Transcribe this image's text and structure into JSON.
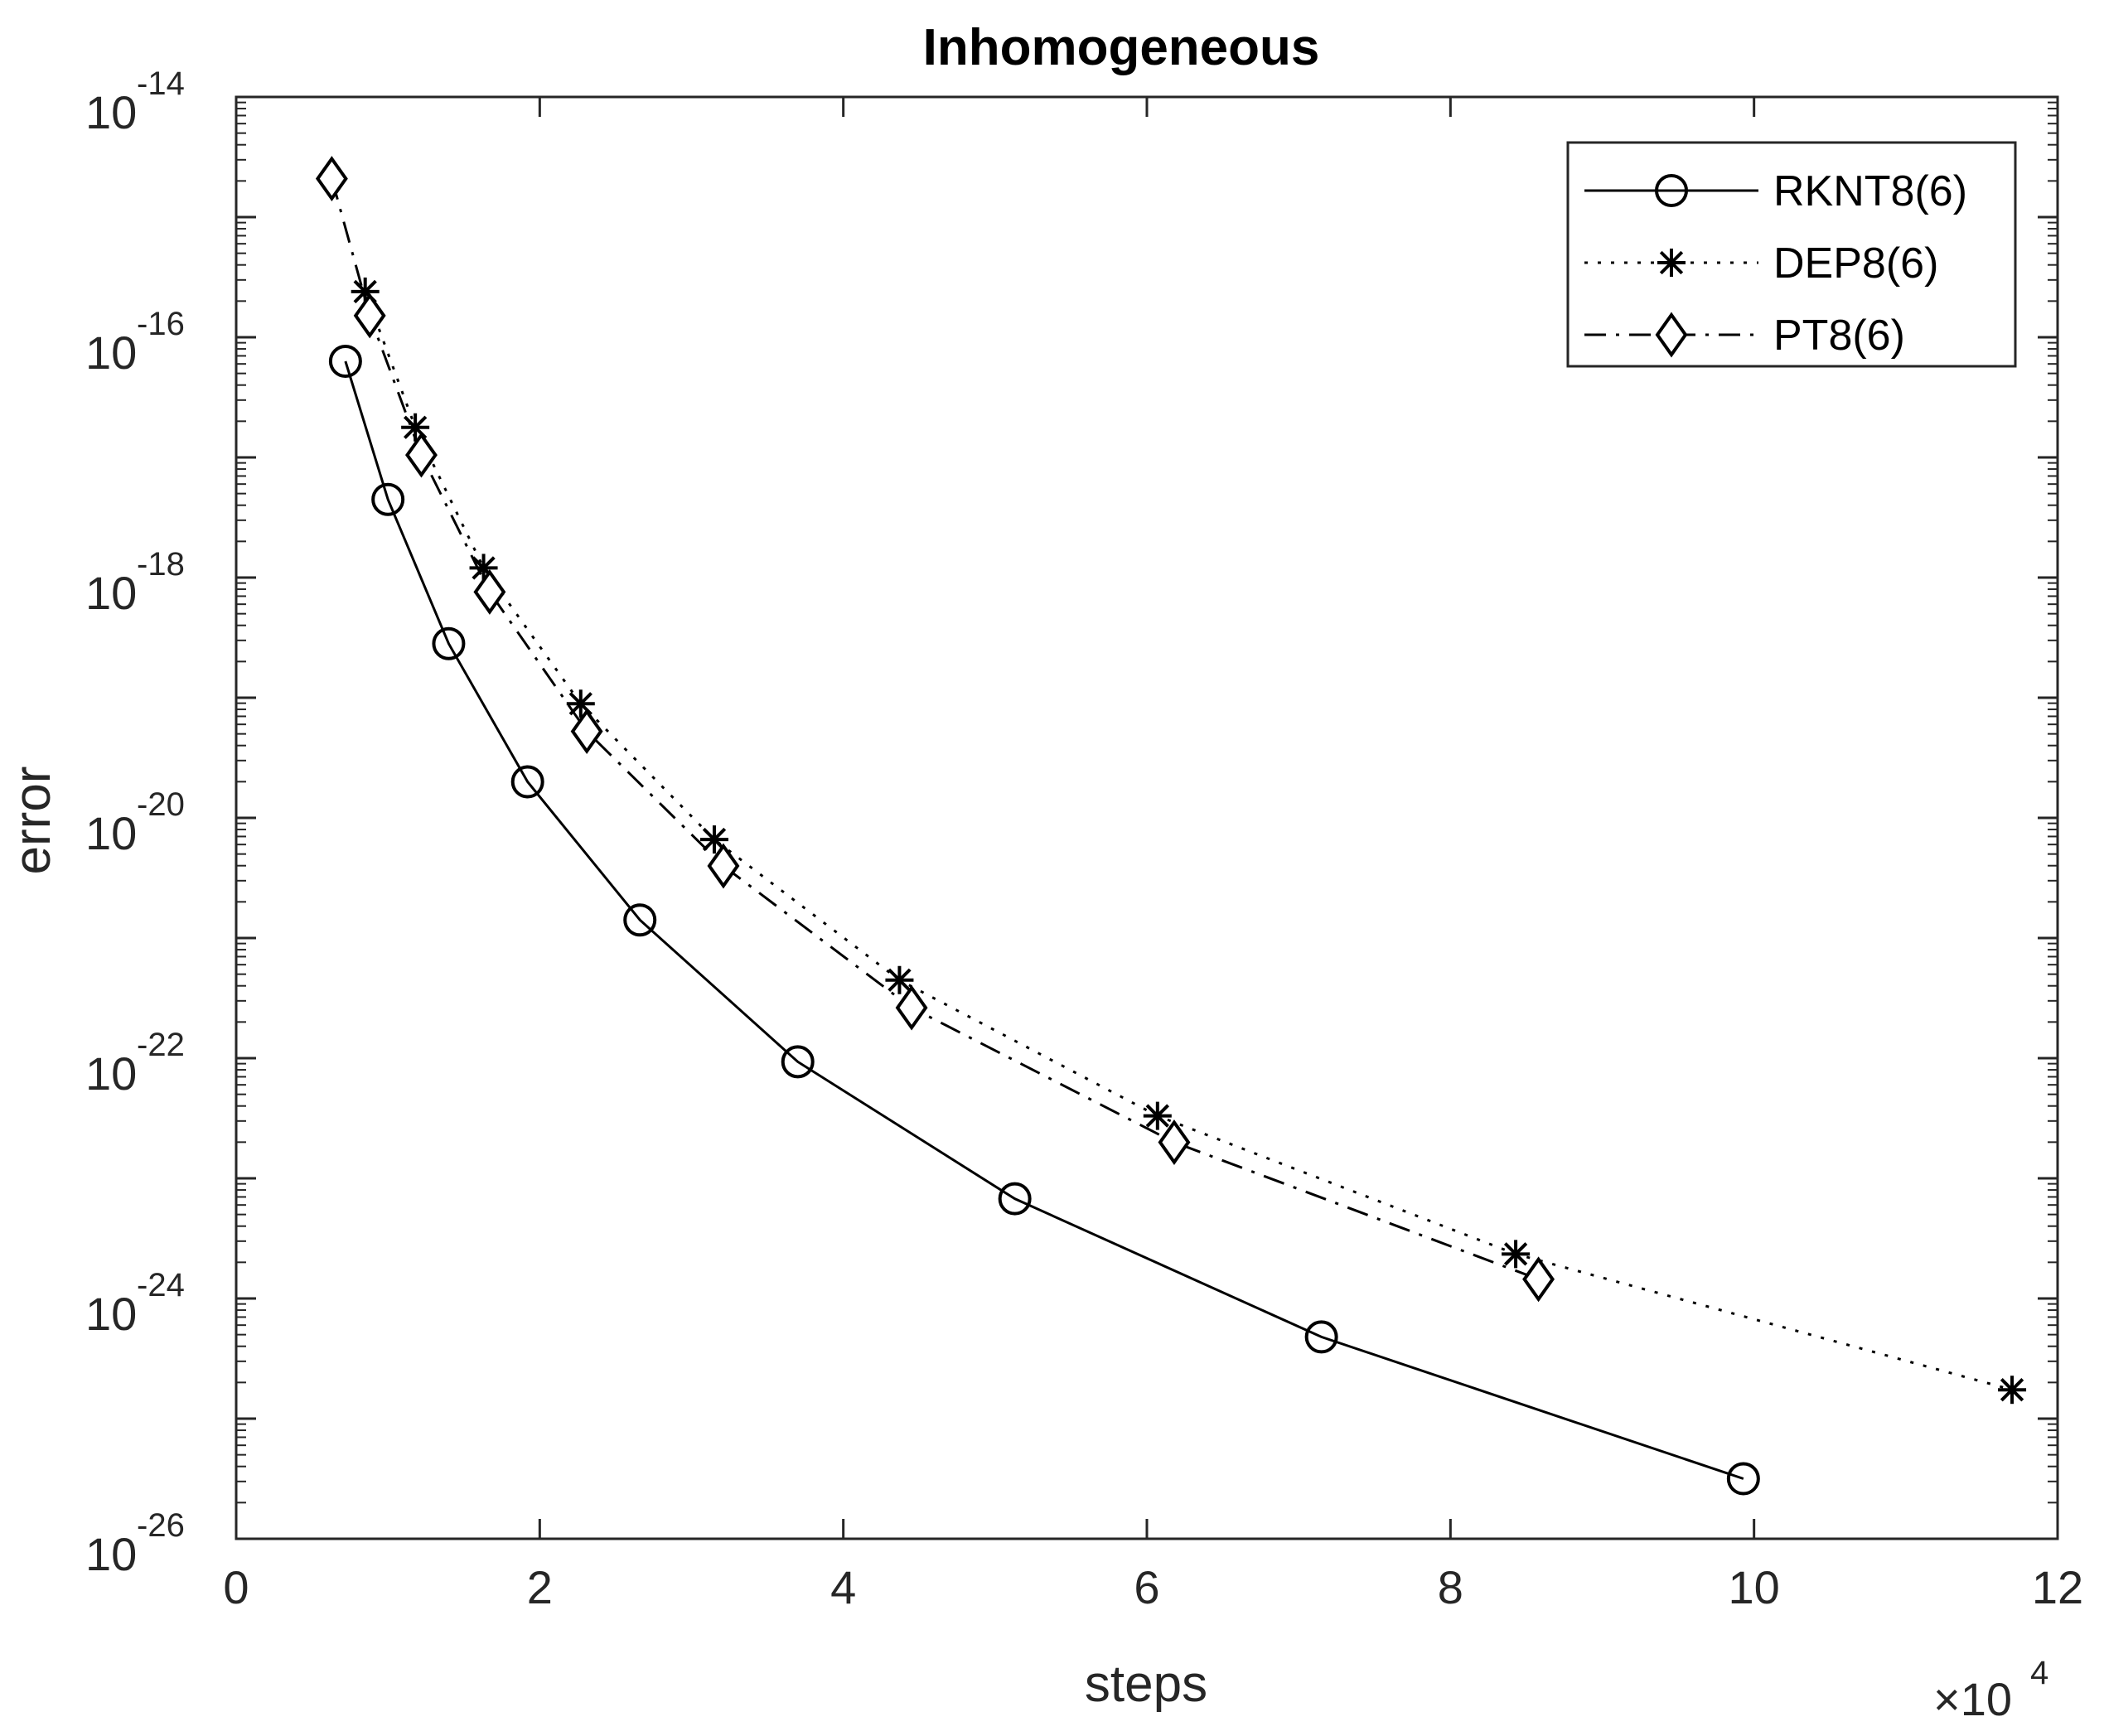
{
  "chart_data": {
    "type": "line",
    "title": "Inhomogeneous",
    "xlabel": "steps",
    "ylabel": "error",
    "x_multiplier_base": "×10",
    "x_multiplier_exp": "4",
    "xlim": [
      0,
      120000
    ],
    "ylim_log10": [
      -26,
      -14
    ],
    "x_ticks": [
      0,
      20000,
      40000,
      60000,
      80000,
      100000,
      120000
    ],
    "x_tick_labels": [
      "0",
      "2",
      "4",
      "6",
      "8",
      "10",
      "12"
    ],
    "y_tick_exps": [
      -14,
      -16,
      -18,
      -20,
      -22,
      -24,
      -26
    ],
    "y_tick_base": "10",
    "y_tick_exp_labels": [
      "-14",
      "-16",
      "-18",
      "-20",
      "-22",
      "-24",
      "-26"
    ],
    "legend_position": "top-right",
    "series": [
      {
        "name": "RKNT8(6)",
        "marker": "circle",
        "linestyle": "solid",
        "x": [
          7200,
          10000,
          14000,
          19200,
          26600,
          37000,
          51300,
          71500,
          99300
        ],
        "log10_y": [
          -16.2,
          -17.35,
          -18.55,
          -19.7,
          -20.85,
          -22.03,
          -23.17,
          -24.32,
          -25.5
        ]
      },
      {
        "name": "DEP8(6)",
        "marker": "star",
        "linestyle": "dotted",
        "x": [
          8500,
          11800,
          16300,
          22700,
          31500,
          43700,
          60700,
          84300,
          117000
        ],
        "log10_y": [
          -15.62,
          -16.75,
          -17.92,
          -19.05,
          -20.18,
          -21.35,
          -22.48,
          -23.63,
          -24.76
        ]
      },
      {
        "name": "PT8(6)",
        "marker": "diamond",
        "linestyle": "dashdot",
        "x": [
          6300,
          8800,
          12200,
          16700,
          23100,
          32100,
          44500,
          61800,
          85800
        ],
        "log10_y": [
          -14.68,
          -15.82,
          -16.98,
          -18.12,
          -19.28,
          -20.4,
          -21.58,
          -22.7,
          -23.84
        ]
      }
    ]
  }
}
